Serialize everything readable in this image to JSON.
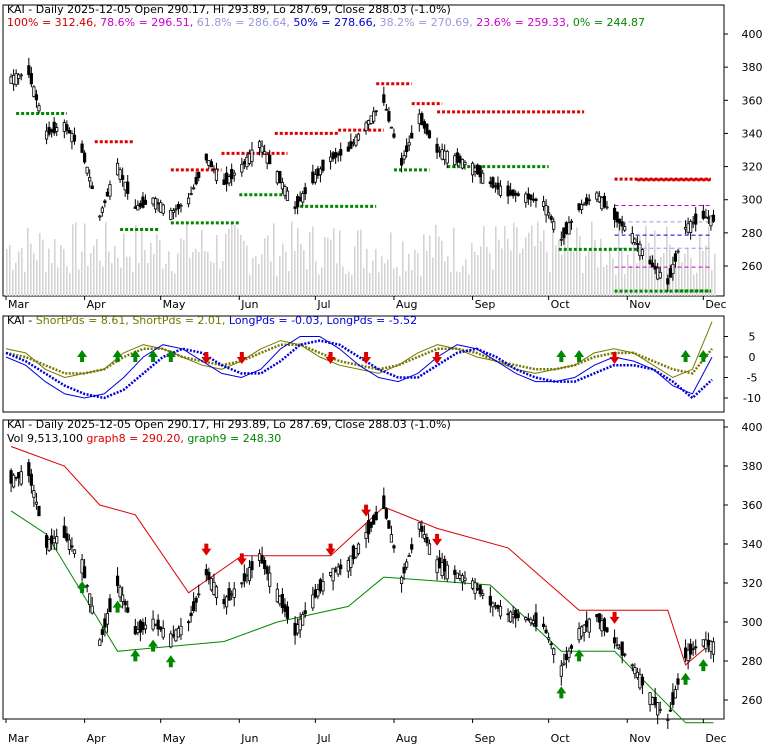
{
  "colors": {
    "background": "#ffffff",
    "frame": "#000000",
    "candle": "#000000",
    "volume": "#d4d4d4",
    "resistance": "#e00000",
    "support": "#008800",
    "fib_100": "#cc0000",
    "fib_786": "#cc00cc",
    "fib_618": "#9999dd",
    "fib_50": "#0000cc",
    "fib_382": "#9999dd",
    "fib_236": "#cc00cc",
    "fib_0": "#008800",
    "short_pds": "#777700",
    "long_pds": "#0000dd",
    "graph8": "#dd0000",
    "graph9": "#008800",
    "arrow_up": "#008800",
    "arrow_down": "#dd0000"
  },
  "panel1": {
    "title": "KAI - Daily 2025-12-05 Open 290.17, Hi 293.89, Lo 287.69, Close 288.03 (-1.0%)",
    "fib_legend": [
      {
        "text": "100% = 312.46,",
        "color": "#cc0000"
      },
      {
        "text": "78.6% = 296.51,",
        "color": "#cc00cc"
      },
      {
        "text": "61.8% = 286.64,",
        "color": "#9999dd"
      },
      {
        "text": "50% = 278.66,",
        "color": "#0000cc"
      },
      {
        "text": "38.2% = 270.69,",
        "color": "#9999dd"
      },
      {
        "text": "23.6% = 259.33,",
        "color": "#cc00cc"
      },
      {
        "text": "0% = 244.87",
        "color": "#008800"
      }
    ],
    "y_ticks": [
      "400",
      "380",
      "360",
      "340",
      "320",
      "300",
      "280",
      "260"
    ]
  },
  "panel2": {
    "legend": [
      {
        "text": "KAI -",
        "color": "#000000"
      },
      {
        "text": "ShortPds = 8.61,",
        "color": "#777700"
      },
      {
        "text": "ShortPds = 2.01,",
        "color": "#777700"
      },
      {
        "text": "LongPds = -0.03,",
        "color": "#0000dd"
      },
      {
        "text": "LongPds = -5.52",
        "color": "#0000dd"
      }
    ],
    "y_ticks": [
      "5",
      "0",
      "-5",
      "-10"
    ]
  },
  "panel3": {
    "title": "KAI - Daily 2025-12-05 Open 290.17, Hi 293.89, Lo 287.69, Close 288.03 (-1.0%)",
    "legend": [
      {
        "text": "Vol 9,513,100",
        "color": "#000000"
      },
      {
        "text": "graph8 = 290.20,",
        "color": "#dd0000"
      },
      {
        "text": "graph9 = 248.30",
        "color": "#008800"
      }
    ],
    "y_ticks": [
      "400",
      "380",
      "360",
      "340",
      "320",
      "300",
      "280",
      "260"
    ]
  },
  "x_ticks": [
    "Mar",
    "Apr",
    "May",
    "Jun",
    "Jul",
    "Aug",
    "Sep",
    "Oct",
    "Nov",
    "Dec"
  ],
  "chart_data": {
    "type": "line",
    "title": "KAI - Daily 2025-12-05 Open 290.17, Hi 293.89, Lo 287.69, Close 288.03 (-1.0%)",
    "x_axis": "date (daily, Mar - Dec)",
    "ylim_price": [
      245,
      402
    ],
    "ylim_oscillator": [
      -13,
      9
    ],
    "close": [
      {
        "date": "2025-03-03",
        "v": 373
      },
      {
        "date": "2025-03-10",
        "v": 377
      },
      {
        "date": "2025-03-17",
        "v": 340
      },
      {
        "date": "2025-03-24",
        "v": 345
      },
      {
        "date": "2025-03-31",
        "v": 330
      },
      {
        "date": "2025-04-07",
        "v": 290
      },
      {
        "date": "2025-04-14",
        "v": 320
      },
      {
        "date": "2025-04-21",
        "v": 295
      },
      {
        "date": "2025-04-28",
        "v": 300
      },
      {
        "date": "2025-05-05",
        "v": 292
      },
      {
        "date": "2025-05-12",
        "v": 300
      },
      {
        "date": "2025-05-19",
        "v": 325
      },
      {
        "date": "2025-05-26",
        "v": 310
      },
      {
        "date": "2025-06-02",
        "v": 320
      },
      {
        "date": "2025-06-09",
        "v": 334
      },
      {
        "date": "2025-06-16",
        "v": 315
      },
      {
        "date": "2025-06-23",
        "v": 295
      },
      {
        "date": "2025-06-30",
        "v": 312
      },
      {
        "date": "2025-07-07",
        "v": 325
      },
      {
        "date": "2025-07-14",
        "v": 330
      },
      {
        "date": "2025-07-21",
        "v": 345
      },
      {
        "date": "2025-07-28",
        "v": 360
      },
      {
        "date": "2025-08-04",
        "v": 322
      },
      {
        "date": "2025-08-11",
        "v": 350
      },
      {
        "date": "2025-08-18",
        "v": 330
      },
      {
        "date": "2025-08-25",
        "v": 325
      },
      {
        "date": "2025-09-01",
        "v": 320
      },
      {
        "date": "2025-09-08",
        "v": 310
      },
      {
        "date": "2025-09-15",
        "v": 304
      },
      {
        "date": "2025-09-22",
        "v": 302
      },
      {
        "date": "2025-09-29",
        "v": 298
      },
      {
        "date": "2025-10-06",
        "v": 276
      },
      {
        "date": "2025-10-13",
        "v": 295
      },
      {
        "date": "2025-10-20",
        "v": 303
      },
      {
        "date": "2025-10-27",
        "v": 290
      },
      {
        "date": "2025-11-03",
        "v": 278
      },
      {
        "date": "2025-11-10",
        "v": 262
      },
      {
        "date": "2025-11-17",
        "v": 250
      },
      {
        "date": "2025-11-24",
        "v": 283
      },
      {
        "date": "2025-12-01",
        "v": 290
      },
      {
        "date": "2025-12-05",
        "v": 288
      }
    ],
    "fib_levels": [
      {
        "label": "100%",
        "v": 312.46
      },
      {
        "label": "78.6%",
        "v": 296.51
      },
      {
        "label": "61.8%",
        "v": 286.64
      },
      {
        "label": "50%",
        "v": 278.66
      },
      {
        "label": "38.2%",
        "v": 270.69
      },
      {
        "label": "23.6%",
        "v": 259.33
      },
      {
        "label": "0%",
        "v": 244.87
      }
    ],
    "graph8": [
      {
        "date": "2025-03-03",
        "v": 390
      },
      {
        "date": "2025-03-24",
        "v": 380
      },
      {
        "date": "2025-04-07",
        "v": 360
      },
      {
        "date": "2025-04-21",
        "v": 355
      },
      {
        "date": "2025-05-12",
        "v": 315
      },
      {
        "date": "2025-06-02",
        "v": 334
      },
      {
        "date": "2025-07-07",
        "v": 334
      },
      {
        "date": "2025-07-28",
        "v": 359
      },
      {
        "date": "2025-08-18",
        "v": 348
      },
      {
        "date": "2025-09-15",
        "v": 338
      },
      {
        "date": "2025-10-13",
        "v": 306
      },
      {
        "date": "2025-11-17",
        "v": 306
      },
      {
        "date": "2025-11-24",
        "v": 278
      },
      {
        "date": "2025-12-05",
        "v": 290.2
      }
    ],
    "graph9": [
      {
        "date": "2025-03-03",
        "v": 357
      },
      {
        "date": "2025-03-17",
        "v": 345
      },
      {
        "date": "2025-04-14",
        "v": 285
      },
      {
        "date": "2025-05-26",
        "v": 290
      },
      {
        "date": "2025-06-16",
        "v": 300
      },
      {
        "date": "2025-07-14",
        "v": 308
      },
      {
        "date": "2025-07-28",
        "v": 323
      },
      {
        "date": "2025-09-08",
        "v": 319
      },
      {
        "date": "2025-10-06",
        "v": 285
      },
      {
        "date": "2025-10-27",
        "v": 285
      },
      {
        "date": "2025-11-24",
        "v": 248.3
      },
      {
        "date": "2025-12-05",
        "v": 248.3
      }
    ],
    "series": [
      {
        "name": "ShortPds = 8.61",
        "values": [
          2,
          1,
          -3,
          -5,
          -4,
          -3,
          1,
          3,
          2,
          0,
          -2,
          -3,
          -1,
          2,
          4,
          3,
          0,
          -2,
          -3,
          -4,
          -2,
          1,
          3,
          2,
          0,
          -1,
          -3,
          -4,
          -3,
          -2,
          1,
          2,
          1,
          -2,
          -5,
          -3,
          8.61
        ]
      },
      {
        "name": "ShortPds = 2.01",
        "values": [
          1,
          0,
          -2,
          -4,
          -4,
          -3,
          0,
          2,
          2,
          0,
          -1,
          -2,
          -1,
          1,
          3,
          3,
          1,
          -1,
          -2,
          -3,
          -2,
          0,
          2,
          2,
          1,
          -1,
          -2,
          -3,
          -3,
          -2,
          0,
          1,
          1,
          -1,
          -3,
          -4,
          2.01
        ]
      },
      {
        "name": "LongPds = -0.03",
        "values": [
          0,
          -2,
          -6,
          -9,
          -10,
          -9,
          -5,
          0,
          3,
          2,
          -1,
          -4,
          -5,
          -3,
          2,
          5,
          5,
          2,
          -2,
          -5,
          -6,
          -4,
          0,
          3,
          2,
          -1,
          -4,
          -6,
          -6,
          -5,
          -2,
          0,
          -1,
          -3,
          -7,
          -9,
          -0.03
        ]
      },
      {
        "name": "LongPds = -5.52",
        "values": [
          1,
          -1,
          -4,
          -7,
          -9,
          -10,
          -8,
          -4,
          0,
          2,
          1,
          -2,
          -4,
          -4,
          -1,
          3,
          4,
          3,
          0,
          -3,
          -5,
          -5,
          -2,
          1,
          2,
          0,
          -3,
          -5,
          -6,
          -6,
          -4,
          -2,
          -2,
          -3,
          -6,
          -10,
          -5.52
        ]
      }
    ],
    "signals": [
      {
        "date": "2025-03-31",
        "dir": "up"
      },
      {
        "date": "2025-04-14",
        "dir": "up"
      },
      {
        "date": "2025-04-21",
        "dir": "up"
      },
      {
        "date": "2025-04-28",
        "dir": "up"
      },
      {
        "date": "2025-05-05",
        "dir": "up"
      },
      {
        "date": "2025-05-19",
        "dir": "down"
      },
      {
        "date": "2025-06-02",
        "dir": "down"
      },
      {
        "date": "2025-07-07",
        "dir": "down"
      },
      {
        "date": "2025-07-21",
        "dir": "down"
      },
      {
        "date": "2025-08-18",
        "dir": "down"
      },
      {
        "date": "2025-10-06",
        "dir": "up"
      },
      {
        "date": "2025-10-13",
        "dir": "up"
      },
      {
        "date": "2025-10-27",
        "dir": "down"
      },
      {
        "date": "2025-11-24",
        "dir": "up"
      },
      {
        "date": "2025-12-01",
        "dir": "up"
      }
    ]
  }
}
